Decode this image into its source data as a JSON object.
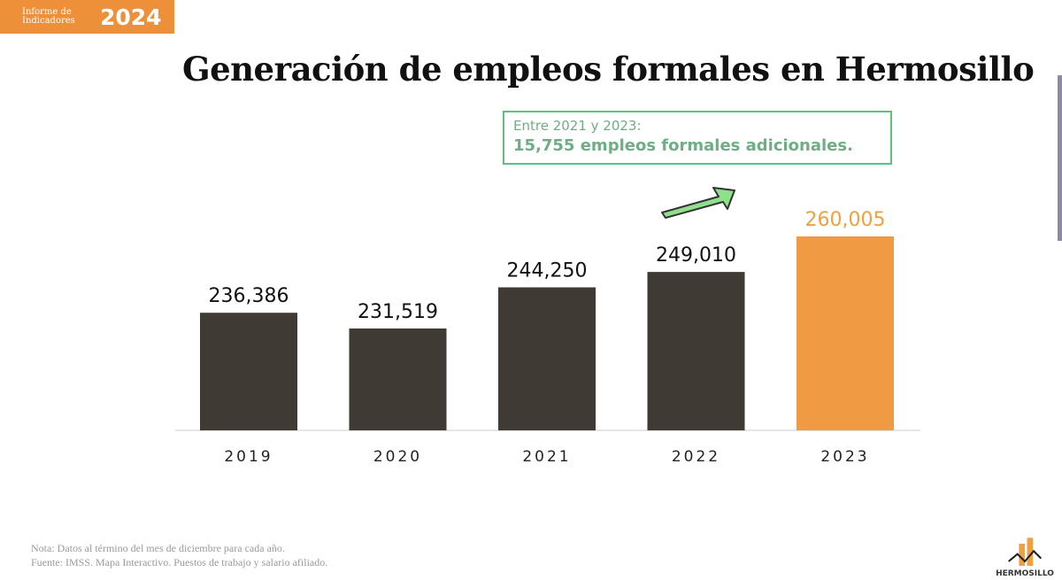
{
  "header": {
    "badge_small": "Informe de Indicadores",
    "badge_year": "2024",
    "title": "Generación de empleos formales en Hermosillo"
  },
  "callout": {
    "line1": "Entre 2021 y 2023:",
    "line2": "15,755 empleos formales adicionales."
  },
  "chart_data": {
    "type": "bar",
    "categories": [
      "2019",
      "2020",
      "2021",
      "2022",
      "2023"
    ],
    "values": [
      236386,
      231519,
      244250,
      249010,
      260005
    ],
    "labels": [
      "236,386",
      "231,519",
      "244,250",
      "249,010",
      "260,005"
    ],
    "ylim": [
      200000,
      270000
    ],
    "colors": {
      "default": "#403a35",
      "highlight": "#f09a44",
      "highlight_label": "#f0a040",
      "label": "#111111"
    },
    "highlight_index": 4
  },
  "footer": {
    "note": "Nota: Datos al término del mes de diciembre para cada año.",
    "source": "Fuente: IMSS. Mapa Interactivo. Puestos de trabajo y salario afiliado.",
    "logo_text": "HERMOSILLO"
  }
}
